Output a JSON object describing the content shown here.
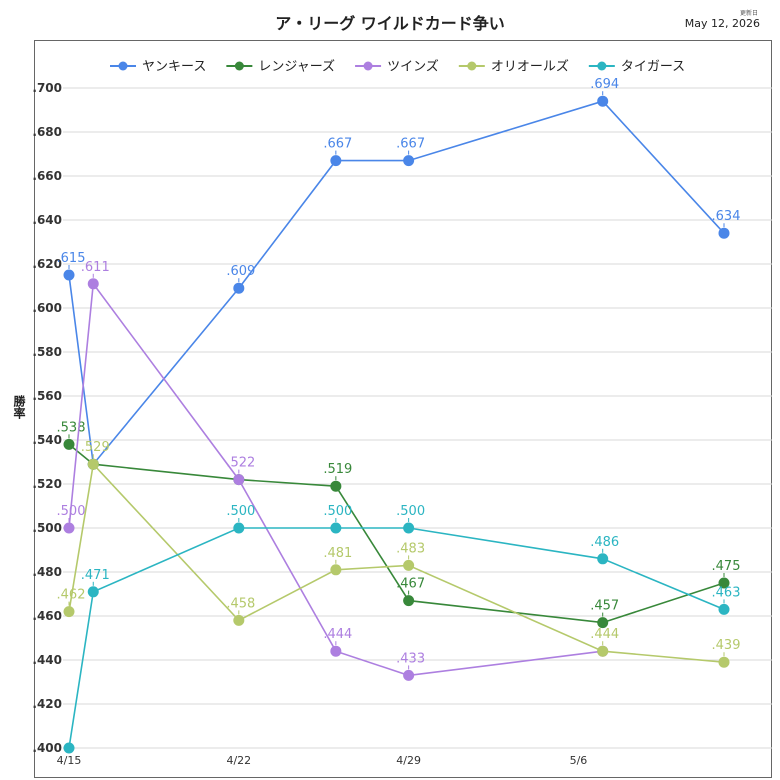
{
  "header": {
    "title": "ア・リーグ ワイルドカード争い",
    "updated_label": "更新日",
    "updated_date": "May 12, 2026"
  },
  "chart_data": {
    "type": "line",
    "title": "ア・リーグ ワイルドカード争い",
    "xlabel": "",
    "ylabel": "勝率",
    "x_ticks": [
      "4/15",
      "4/22",
      "4/29",
      "5/6"
    ],
    "xlim": [
      "4/15",
      "5/12"
    ],
    "ylim": [
      0.4,
      0.7
    ],
    "y_ticks": [
      ".400",
      ".420",
      ".440",
      ".460",
      ".480",
      ".500",
      ".520",
      ".540",
      ".560",
      ".580",
      ".600",
      ".620",
      ".640",
      ".660",
      ".680",
      ".700"
    ],
    "grid": true,
    "legend_position": "top",
    "series": [
      {
        "name": "ヤンキース",
        "color": "#4a86e8",
        "x": [
          "4/15",
          "4/16",
          "4/22",
          "4/26",
          "4/29",
          "5/7",
          "5/12"
        ],
        "values": [
          0.615,
          0.529,
          0.609,
          0.667,
          0.667,
          0.694,
          0.634
        ],
        "labels": [
          ".615",
          "",
          ".609",
          ".667",
          ".667",
          ".694",
          ".634"
        ]
      },
      {
        "name": "レンジャーズ",
        "color": "#38883a",
        "x": [
          "4/15",
          "4/16",
          "4/22",
          "4/26",
          "4/29",
          "5/7",
          "5/12"
        ],
        "values": [
          0.538,
          0.529,
          0.522,
          0.519,
          0.467,
          0.457,
          0.475
        ],
        "labels": [
          ".538",
          "",
          "",
          ".519",
          ".467",
          ".457",
          ".475"
        ]
      },
      {
        "name": "ツインズ",
        "color": "#ad7fe0",
        "x": [
          "4/15",
          "4/16",
          "4/22",
          "4/26",
          "4/29",
          "5/7",
          "5/12"
        ],
        "values": [
          0.5,
          0.611,
          0.522,
          0.444,
          0.433,
          0.444,
          null
        ],
        "labels": [
          ".500",
          ".611",
          ".522",
          ".444",
          ".433",
          "",
          ""
        ]
      },
      {
        "name": "オリオールズ",
        "color": "#b5c96b",
        "x": [
          "4/15",
          "4/16",
          "4/22",
          "4/26",
          "4/29",
          "5/7",
          "5/12"
        ],
        "values": [
          0.462,
          0.529,
          0.458,
          0.481,
          0.483,
          0.444,
          0.439
        ],
        "labels": [
          ".462",
          ".529",
          ".458",
          ".481",
          ".483",
          ".444",
          ".439"
        ]
      },
      {
        "name": "タイガース",
        "color": "#2bb5c2",
        "x": [
          "4/15",
          "4/16",
          "4/22",
          "4/26",
          "4/29",
          "5/7",
          "5/12"
        ],
        "values": [
          0.4,
          0.471,
          0.5,
          0.5,
          0.5,
          0.486,
          0.463
        ],
        "labels": [
          "",
          ".471",
          ".500",
          ".500",
          ".500",
          ".486",
          ".463"
        ]
      }
    ]
  }
}
